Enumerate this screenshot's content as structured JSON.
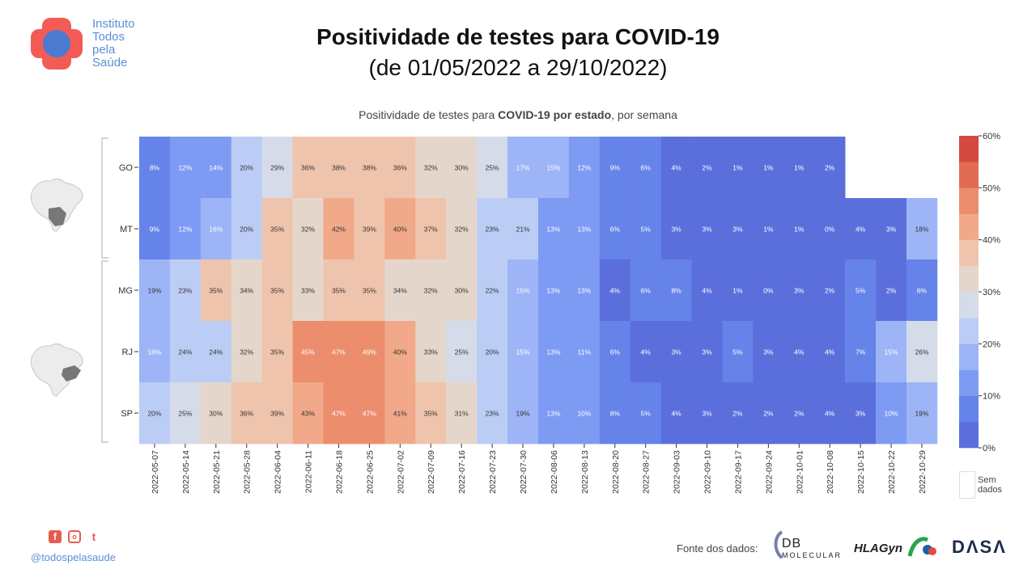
{
  "header": {
    "title": "Positividade de testes para COVID-19",
    "subtitle": "(de 01/05/2022 a 29/10/2022)"
  },
  "logo": {
    "lines": [
      "Instituto",
      "Todos",
      "pela",
      "Saúde"
    ],
    "colors": {
      "cross": "#f25c54",
      "circle": "#4a7bd0"
    }
  },
  "chart_title_parts": {
    "pre": "Positividade de testes para ",
    "bold": "COVID-19 por estado",
    "post": ", por semana"
  },
  "footer": {
    "social_icons": [
      "facebook-icon",
      "instagram-icon",
      "twitter-icon"
    ],
    "handle": "@todospelasaude",
    "source_label": "Fonte dos dados:",
    "sources": {
      "db_main": "DB",
      "db_sub": "MOLECULAR",
      "hla": "HLAGyn",
      "dasa": "DΛSΛ"
    }
  },
  "chart_data": {
    "type": "heatmap",
    "title": "Positividade de testes para COVID-19 por estado, por semana",
    "x": [
      "2022-05-07",
      "2022-05-14",
      "2022-05-21",
      "2022-05-28",
      "2022-06-04",
      "2022-06-11",
      "2022-06-18",
      "2022-06-25",
      "2022-07-02",
      "2022-07-09",
      "2022-07-16",
      "2022-07-23",
      "2022-07-30",
      "2022-08-06",
      "2022-08-13",
      "2022-08-20",
      "2022-08-27",
      "2022-09-03",
      "2022-09-10",
      "2022-09-17",
      "2022-09-24",
      "2022-10-01",
      "2022-10-08",
      "2022-10-15",
      "2022-10-22",
      "2022-10-29"
    ],
    "y": [
      "GO",
      "MT",
      "MG",
      "RJ",
      "SP"
    ],
    "groups": [
      [
        "GO",
        "MT"
      ],
      [
        "MG",
        "RJ",
        "SP"
      ]
    ],
    "values": [
      [
        8,
        12,
        14,
        20,
        29,
        36,
        38,
        38,
        36,
        32,
        30,
        25,
        17,
        15,
        12,
        9,
        6,
        4,
        2,
        1,
        1,
        1,
        2,
        null,
        null,
        null
      ],
      [
        9,
        12,
        16,
        20,
        35,
        32,
        42,
        39,
        40,
        37,
        32,
        23,
        21,
        13,
        13,
        6,
        5,
        3,
        3,
        3,
        1,
        1,
        0,
        4,
        3,
        18
      ],
      [
        19,
        23,
        35,
        34,
        35,
        33,
        35,
        35,
        34,
        32,
        30,
        22,
        15,
        13,
        13,
        4,
        6,
        8,
        4,
        1,
        0,
        3,
        2,
        5,
        2,
        6
      ],
      [
        16,
        24,
        24,
        32,
        35,
        45,
        47,
        49,
        40,
        33,
        25,
        20,
        15,
        13,
        11,
        6,
        4,
        3,
        3,
        5,
        3,
        4,
        4,
        7,
        15,
        26
      ],
      [
        20,
        25,
        30,
        36,
        39,
        43,
        47,
        47,
        41,
        35,
        31,
        23,
        19,
        13,
        10,
        8,
        5,
        4,
        3,
        2,
        2,
        2,
        4,
        3,
        10,
        19
      ]
    ],
    "value_suffix": "%",
    "colorbar": {
      "min": 0,
      "max": 60,
      "ticks": [
        "0%",
        "10%",
        "20%",
        "30%",
        "40%",
        "50%",
        "60%"
      ],
      "colors": [
        "#5b6fdc",
        "#6683ea",
        "#7e9bf4",
        "#9db5f7",
        "#bccdf5",
        "#d5dbe8",
        "#e5d6cc",
        "#efc4ad",
        "#f1a98a",
        "#ec8d6e",
        "#e26b54",
        "#d24a3f"
      ]
    },
    "missing_label": "Sem\ndados"
  }
}
